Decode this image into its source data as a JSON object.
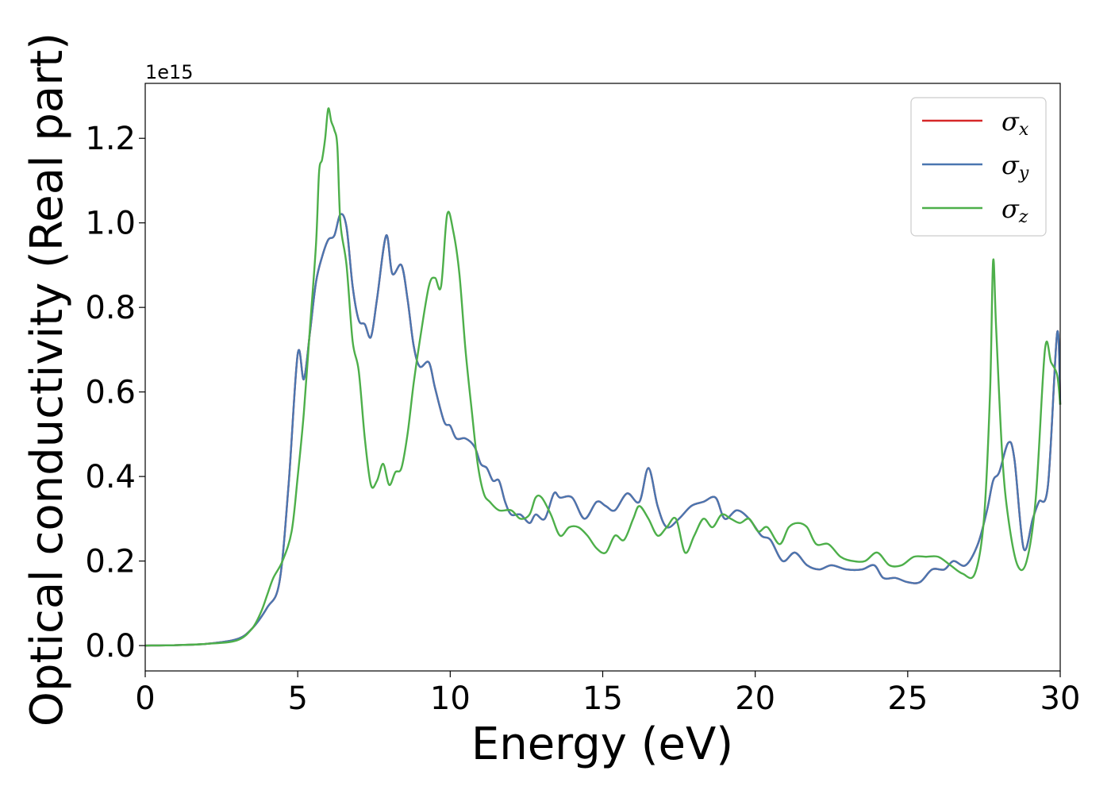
{
  "chart_data": {
    "type": "line",
    "title": "",
    "xlabel": "Energy (eV)",
    "ylabel": "Optical conductivity (Real part)",
    "y_offset_text": "1e15",
    "y_scale": 1000000000000000.0,
    "xlim": [
      0,
      30
    ],
    "ylim": [
      -0.06,
      1.33
    ],
    "xticks": [
      0,
      5,
      10,
      15,
      20,
      25,
      30
    ],
    "xtick_labels": [
      "0",
      "5",
      "10",
      "15",
      "20",
      "25",
      "30"
    ],
    "yticks": [
      0.0,
      0.2,
      0.4,
      0.6,
      0.8,
      1.0,
      1.2
    ],
    "ytick_labels": [
      "0.0",
      "0.2",
      "0.4",
      "0.6",
      "0.8",
      "1.0",
      "1.2"
    ],
    "grid": false,
    "legend_position": "top-right",
    "series": [
      {
        "name": "σx",
        "legend_symbol": "σ",
        "legend_sub": "x",
        "color": "#d62728",
        "x": [
          0,
          1,
          2,
          3,
          3.5,
          4,
          4.4,
          4.7,
          5.0,
          5.2,
          5.4,
          5.6,
          5.8,
          6.0,
          6.2,
          6.4,
          6.6,
          6.8,
          7.0,
          7.2,
          7.4,
          7.6,
          7.9,
          8.1,
          8.4,
          8.6,
          8.8,
          9.0,
          9.3,
          9.5,
          9.8,
          10.0,
          10.2,
          10.5,
          10.8,
          11.0,
          11.2,
          11.4,
          11.6,
          11.8,
          12.0,
          12.3,
          12.6,
          12.8,
          13.1,
          13.4,
          13.6,
          14.0,
          14.4,
          14.8,
          15.1,
          15.4,
          15.8,
          16.2,
          16.5,
          16.8,
          17.1,
          17.5,
          17.9,
          18.3,
          18.7,
          19.0,
          19.4,
          19.8,
          20.2,
          20.5,
          20.9,
          21.3,
          21.7,
          22.1,
          22.5,
          23.0,
          23.5,
          23.9,
          24.2,
          24.6,
          25.0,
          25.4,
          25.8,
          26.2,
          26.5,
          26.9,
          27.3,
          27.6,
          27.8,
          28.0,
          28.3,
          28.5,
          28.8,
          29.1,
          29.3,
          29.6,
          29.9,
          30.0
        ],
        "y": [
          0.0,
          0.001,
          0.004,
          0.015,
          0.04,
          0.09,
          0.15,
          0.38,
          0.69,
          0.63,
          0.74,
          0.86,
          0.92,
          0.96,
          0.97,
          1.02,
          0.99,
          0.85,
          0.77,
          0.76,
          0.73,
          0.82,
          0.97,
          0.88,
          0.9,
          0.82,
          0.71,
          0.66,
          0.67,
          0.61,
          0.53,
          0.52,
          0.49,
          0.49,
          0.47,
          0.43,
          0.42,
          0.39,
          0.39,
          0.34,
          0.31,
          0.31,
          0.29,
          0.31,
          0.3,
          0.36,
          0.35,
          0.35,
          0.3,
          0.34,
          0.33,
          0.32,
          0.36,
          0.34,
          0.42,
          0.33,
          0.28,
          0.3,
          0.33,
          0.34,
          0.35,
          0.3,
          0.32,
          0.3,
          0.26,
          0.25,
          0.2,
          0.22,
          0.19,
          0.18,
          0.19,
          0.18,
          0.18,
          0.19,
          0.16,
          0.16,
          0.15,
          0.15,
          0.18,
          0.18,
          0.2,
          0.19,
          0.24,
          0.32,
          0.39,
          0.41,
          0.48,
          0.44,
          0.23,
          0.3,
          0.34,
          0.38,
          0.74,
          0.57
        ]
      },
      {
        "name": "σy",
        "legend_symbol": "σ",
        "legend_sub": "y",
        "color": "#4a76b0",
        "x": [
          0,
          1,
          2,
          3,
          3.5,
          4,
          4.4,
          4.7,
          5.0,
          5.2,
          5.4,
          5.6,
          5.8,
          6.0,
          6.2,
          6.4,
          6.6,
          6.8,
          7.0,
          7.2,
          7.4,
          7.6,
          7.9,
          8.1,
          8.4,
          8.6,
          8.8,
          9.0,
          9.3,
          9.5,
          9.8,
          10.0,
          10.2,
          10.5,
          10.8,
          11.0,
          11.2,
          11.4,
          11.6,
          11.8,
          12.0,
          12.3,
          12.6,
          12.8,
          13.1,
          13.4,
          13.6,
          14.0,
          14.4,
          14.8,
          15.1,
          15.4,
          15.8,
          16.2,
          16.5,
          16.8,
          17.1,
          17.5,
          17.9,
          18.3,
          18.7,
          19.0,
          19.4,
          19.8,
          20.2,
          20.5,
          20.9,
          21.3,
          21.7,
          22.1,
          22.5,
          23.0,
          23.5,
          23.9,
          24.2,
          24.6,
          25.0,
          25.4,
          25.8,
          26.2,
          26.5,
          26.9,
          27.3,
          27.6,
          27.8,
          28.0,
          28.3,
          28.5,
          28.8,
          29.1,
          29.3,
          29.6,
          29.9,
          30.0
        ],
        "y": [
          0.0,
          0.001,
          0.004,
          0.015,
          0.04,
          0.09,
          0.15,
          0.38,
          0.69,
          0.63,
          0.74,
          0.86,
          0.92,
          0.96,
          0.97,
          1.02,
          0.99,
          0.85,
          0.77,
          0.76,
          0.73,
          0.82,
          0.97,
          0.88,
          0.9,
          0.82,
          0.71,
          0.66,
          0.67,
          0.61,
          0.53,
          0.52,
          0.49,
          0.49,
          0.47,
          0.43,
          0.42,
          0.39,
          0.39,
          0.34,
          0.31,
          0.31,
          0.29,
          0.31,
          0.3,
          0.36,
          0.35,
          0.35,
          0.3,
          0.34,
          0.33,
          0.32,
          0.36,
          0.34,
          0.42,
          0.33,
          0.28,
          0.3,
          0.33,
          0.34,
          0.35,
          0.3,
          0.32,
          0.3,
          0.26,
          0.25,
          0.2,
          0.22,
          0.19,
          0.18,
          0.19,
          0.18,
          0.18,
          0.19,
          0.16,
          0.16,
          0.15,
          0.15,
          0.18,
          0.18,
          0.2,
          0.19,
          0.24,
          0.32,
          0.39,
          0.41,
          0.48,
          0.44,
          0.23,
          0.3,
          0.34,
          0.38,
          0.74,
          0.57
        ]
      },
      {
        "name": "σz",
        "legend_symbol": "σ",
        "legend_sub": "z",
        "color": "#4daf4a",
        "x": [
          0,
          1,
          2,
          3,
          3.5,
          3.8,
          4.0,
          4.2,
          4.5,
          4.8,
          5.0,
          5.2,
          5.4,
          5.6,
          5.7,
          5.8,
          5.9,
          6.0,
          6.1,
          6.2,
          6.3,
          6.4,
          6.6,
          6.8,
          7.0,
          7.2,
          7.4,
          7.6,
          7.8,
          8.0,
          8.2,
          8.4,
          8.6,
          8.8,
          9.0,
          9.3,
          9.5,
          9.7,
          9.9,
          10.1,
          10.3,
          10.5,
          10.7,
          10.9,
          11.1,
          11.3,
          11.6,
          12.0,
          12.3,
          12.6,
          12.8,
          13.0,
          13.3,
          13.6,
          13.9,
          14.2,
          14.5,
          14.8,
          15.1,
          15.4,
          15.7,
          16.0,
          16.2,
          16.5,
          16.8,
          17.1,
          17.4,
          17.7,
          18.0,
          18.3,
          18.6,
          18.9,
          19.2,
          19.5,
          19.8,
          20.1,
          20.4,
          20.8,
          21.1,
          21.4,
          21.7,
          22.0,
          22.4,
          22.8,
          23.2,
          23.6,
          24.0,
          24.4,
          24.8,
          25.2,
          25.6,
          26.0,
          26.4,
          26.8,
          27.2,
          27.5,
          27.7,
          27.8,
          27.9,
          28.1,
          28.3,
          28.6,
          28.9,
          29.2,
          29.5,
          29.7,
          29.9,
          30.0
        ],
        "y": [
          0.0,
          0.001,
          0.004,
          0.012,
          0.04,
          0.08,
          0.12,
          0.16,
          0.2,
          0.27,
          0.4,
          0.55,
          0.75,
          0.95,
          1.12,
          1.15,
          1.2,
          1.27,
          1.24,
          1.22,
          1.18,
          1.0,
          0.9,
          0.72,
          0.65,
          0.49,
          0.38,
          0.39,
          0.43,
          0.38,
          0.41,
          0.42,
          0.5,
          0.62,
          0.72,
          0.85,
          0.87,
          0.85,
          1.02,
          0.98,
          0.88,
          0.7,
          0.56,
          0.43,
          0.36,
          0.34,
          0.32,
          0.32,
          0.3,
          0.31,
          0.35,
          0.35,
          0.31,
          0.26,
          0.28,
          0.28,
          0.26,
          0.23,
          0.22,
          0.26,
          0.25,
          0.3,
          0.33,
          0.3,
          0.26,
          0.28,
          0.3,
          0.22,
          0.26,
          0.3,
          0.28,
          0.31,
          0.3,
          0.29,
          0.3,
          0.27,
          0.28,
          0.24,
          0.28,
          0.29,
          0.28,
          0.24,
          0.24,
          0.21,
          0.2,
          0.2,
          0.22,
          0.19,
          0.19,
          0.21,
          0.21,
          0.21,
          0.19,
          0.17,
          0.17,
          0.3,
          0.6,
          0.91,
          0.75,
          0.45,
          0.3,
          0.19,
          0.2,
          0.35,
          0.7,
          0.67,
          0.64,
          0.57
        ]
      }
    ]
  }
}
